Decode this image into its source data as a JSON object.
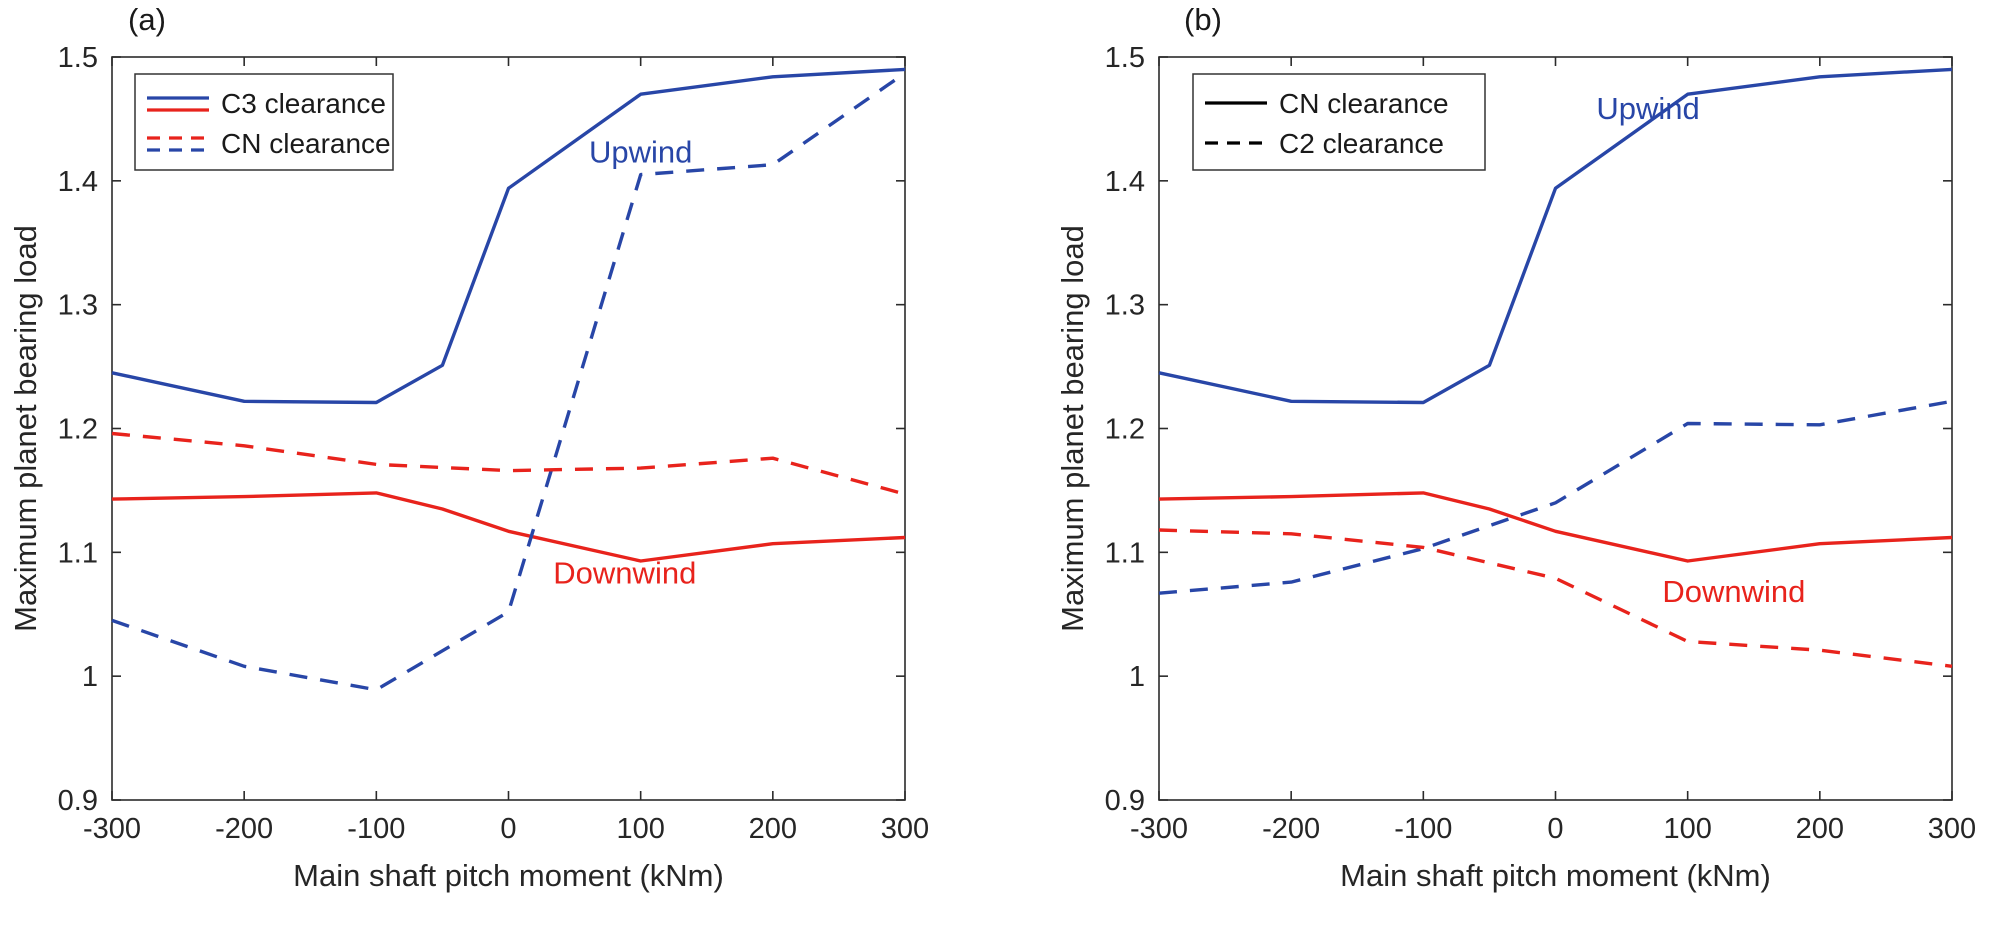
{
  "figure": {
    "background": "#ffffff",
    "text_color": "#262626",
    "panel_count": 2
  },
  "chart_data": [
    {
      "type": "line",
      "panel_label": "(a)",
      "xlabel": "Main shaft pitch moment (kNm)",
      "ylabel": "Maximum planet bearing load",
      "xlim": [
        -300,
        300
      ],
      "ylim": [
        0.9,
        1.5
      ],
      "xticks": [
        -300,
        -200,
        -100,
        0,
        100,
        200,
        300
      ],
      "xtick_labels": [
        "-300",
        "-200",
        "-100",
        "0",
        "100",
        "200",
        "300"
      ],
      "yticks": [
        0.9,
        1.0,
        1.1,
        1.2,
        1.3,
        1.4,
        1.5
      ],
      "ytick_labels": [
        "0.9",
        "1",
        "1.1",
        "1.2",
        "1.3",
        "1.4",
        "1.5"
      ],
      "grid": false,
      "axis_color": "#2b2b2b",
      "legend": {
        "position": "top-left",
        "entries": [
          {
            "label": "C3  clearance",
            "style": "solid",
            "colors": [
              "#2846a7",
              "#e8231c"
            ]
          },
          {
            "label": "CN clearance",
            "style": "dashed",
            "colors": [
              "#e8231c",
              "#2846a7"
            ]
          }
        ]
      },
      "annotations": [
        {
          "text": "Upwind",
          "color": "#2846a7",
          "x": 100,
          "y": 1.415
        },
        {
          "text": "Downwind",
          "color": "#e8231c",
          "x": 88,
          "y": 1.075
        }
      ],
      "series": [
        {
          "name": "Upwind C3 clearance",
          "color": "#2846a7",
          "style": "solid",
          "x": [
            -300,
            -200,
            -100,
            -50,
            0,
            100,
            200,
            300
          ],
          "y": [
            1.245,
            1.222,
            1.221,
            1.251,
            1.394,
            1.47,
            1.484,
            1.49
          ]
        },
        {
          "name": "Downwind C3 clearance",
          "color": "#e8231c",
          "style": "solid",
          "x": [
            -300,
            -200,
            -100,
            -50,
            0,
            100,
            200,
            300
          ],
          "y": [
            1.143,
            1.145,
            1.148,
            1.135,
            1.117,
            1.093,
            1.107,
            1.112
          ]
        },
        {
          "name": "Upwind CN clearance",
          "color": "#2846a7",
          "style": "dashed",
          "x": [
            -300,
            -200,
            -100,
            0,
            100,
            200,
            300
          ],
          "y": [
            1.045,
            1.008,
            0.989,
            1.052,
            1.405,
            1.413,
            1.487
          ]
        },
        {
          "name": "Downwind CN clearance",
          "color": "#e8231c",
          "style": "dashed",
          "x": [
            -300,
            -200,
            -100,
            0,
            100,
            200,
            300
          ],
          "y": [
            1.196,
            1.186,
            1.171,
            1.166,
            1.168,
            1.176,
            1.147
          ]
        }
      ]
    },
    {
      "type": "line",
      "panel_label": "(b)",
      "xlabel": "Main shaft pitch moment (kNm)",
      "ylabel": "Maximum planet bearing load",
      "xlim": [
        -300,
        300
      ],
      "ylim": [
        0.9,
        1.5
      ],
      "xticks": [
        -300,
        -200,
        -100,
        0,
        100,
        200,
        300
      ],
      "xtick_labels": [
        "-300",
        "-200",
        "-100",
        "0",
        "100",
        "200",
        "300"
      ],
      "yticks": [
        0.9,
        1.0,
        1.1,
        1.2,
        1.3,
        1.4,
        1.5
      ],
      "ytick_labels": [
        "0.9",
        "1",
        "1.1",
        "1.2",
        "1.3",
        "1.4",
        "1.5"
      ],
      "grid": false,
      "axis_color": "#2b2b2b",
      "legend": {
        "position": "top-left",
        "entries": [
          {
            "label": "CN clearance",
            "style": "solid",
            "colors": [
              "#000000"
            ]
          },
          {
            "label": "C2 clearance",
            "style": "dashed",
            "colors": [
              "#000000"
            ]
          }
        ]
      },
      "annotations": [
        {
          "text": "Upwind",
          "color": "#2846a7",
          "x": 70,
          "y": 1.45
        },
        {
          "text": "Downwind",
          "color": "#e8231c",
          "x": 135,
          "y": 1.06
        }
      ],
      "series": [
        {
          "name": "Upwind CN clearance",
          "color": "#2846a7",
          "style": "solid",
          "x": [
            -300,
            -200,
            -100,
            -50,
            0,
            100,
            200,
            300
          ],
          "y": [
            1.245,
            1.222,
            1.221,
            1.251,
            1.394,
            1.47,
            1.484,
            1.49
          ]
        },
        {
          "name": "Downwind CN clearance",
          "color": "#e8231c",
          "style": "solid",
          "x": [
            -300,
            -200,
            -100,
            -50,
            0,
            100,
            200,
            300
          ],
          "y": [
            1.143,
            1.145,
            1.148,
            1.135,
            1.117,
            1.093,
            1.107,
            1.112
          ]
        },
        {
          "name": "Upwind C2 clearance",
          "color": "#2846a7",
          "style": "dashed",
          "x": [
            -300,
            -200,
            -100,
            0,
            100,
            200,
            300
          ],
          "y": [
            1.067,
            1.076,
            1.103,
            1.14,
            1.204,
            1.203,
            1.222
          ]
        },
        {
          "name": "Downwind C2 clearance",
          "color": "#e8231c",
          "style": "dashed",
          "x": [
            -300,
            -200,
            -100,
            0,
            100,
            200,
            300
          ],
          "y": [
            1.118,
            1.115,
            1.104,
            1.079,
            1.028,
            1.021,
            1.008
          ]
        }
      ]
    }
  ]
}
